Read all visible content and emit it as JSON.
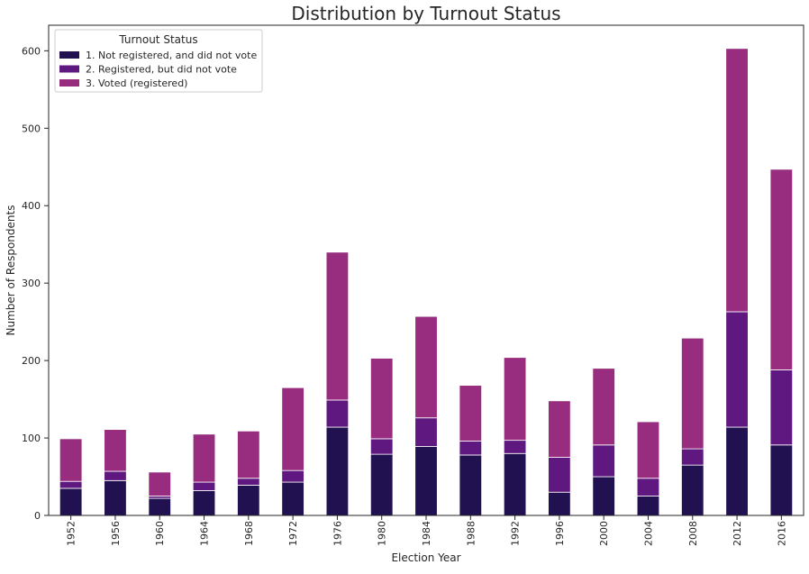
{
  "chart_data": {
    "type": "bar",
    "stacked": true,
    "title": "Distribution by Turnout Status",
    "xlabel": "Election Year",
    "ylabel": "Number of Respondents",
    "ylim": [
      0,
      633
    ],
    "yticks": [
      0,
      100,
      200,
      300,
      400,
      500,
      600
    ],
    "grid": false,
    "legend": {
      "title": "Turnout Status",
      "placement": "top-left"
    },
    "categories": [
      "1952",
      "1956",
      "1960",
      "1964",
      "1968",
      "1972",
      "1976",
      "1980",
      "1984",
      "1988",
      "1992",
      "1996",
      "2000",
      "2004",
      "2008",
      "2012",
      "2016"
    ],
    "series": [
      {
        "name": "1. Not registered, and did not vote",
        "color": "#221150",
        "values": [
          35,
          45,
          22,
          32,
          39,
          43,
          114,
          79,
          89,
          78,
          80,
          30,
          50,
          25,
          65,
          114,
          91
        ]
      },
      {
        "name": "2. Registered, but did not vote",
        "color": "#5f187f",
        "values": [
          9,
          12,
          3,
          11,
          9,
          15,
          35,
          20,
          37,
          18,
          17,
          45,
          41,
          23,
          21,
          149,
          97
        ]
      },
      {
        "name": "3. Voted (registered)",
        "color": "#982d80",
        "values": [
          55,
          54,
          31,
          62,
          61,
          107,
          191,
          104,
          131,
          72,
          107,
          73,
          99,
          73,
          143,
          340,
          259
        ]
      }
    ]
  }
}
